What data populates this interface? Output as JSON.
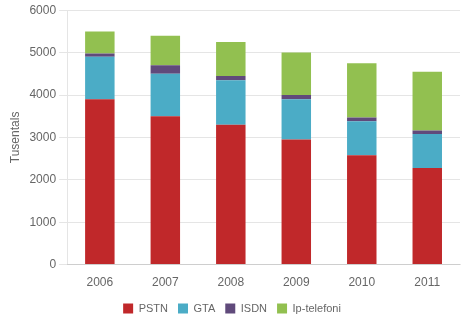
{
  "chart_data": {
    "type": "bar",
    "stacked": true,
    "categories": [
      "2006",
      "2007",
      "2008",
      "2009",
      "2010",
      "2011"
    ],
    "series": [
      {
        "name": "PSTN",
        "color": "#c0282a",
        "values": [
          3900,
          3500,
          3300,
          2950,
          2580,
          2280
        ]
      },
      {
        "name": "GTA",
        "color": "#4bacc6",
        "values": [
          1000,
          1000,
          1050,
          950,
          800,
          800
        ]
      },
      {
        "name": "ISDN",
        "color": "#604a7b",
        "values": [
          80,
          200,
          100,
          100,
          90,
          80
        ]
      },
      {
        "name": "Ip-telefoni",
        "color": "#92c050",
        "values": [
          520,
          700,
          800,
          1000,
          1280,
          1390
        ]
      }
    ],
    "ylabel": "Tusentals",
    "ylim": [
      0,
      6000
    ],
    "yticks": [
      0,
      1000,
      2000,
      3000,
      4000,
      5000,
      6000
    ],
    "grid": true,
    "legend": "bottom"
  }
}
